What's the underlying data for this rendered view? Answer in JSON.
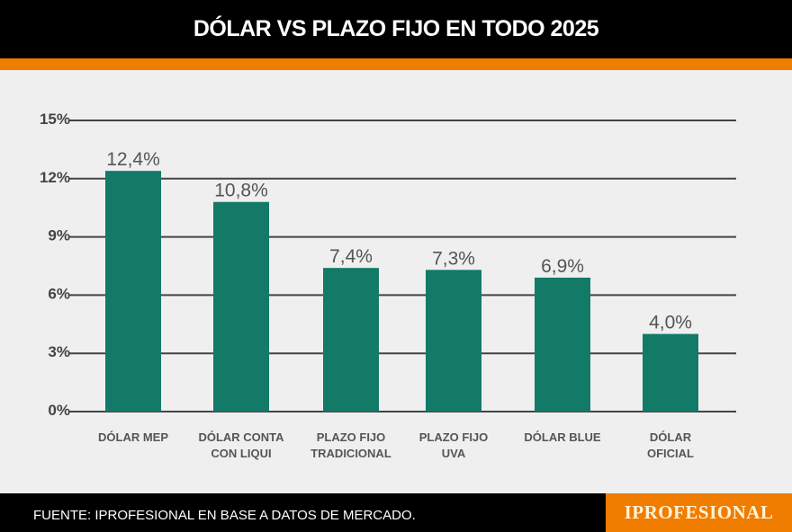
{
  "chart_data": {
    "type": "bar",
    "title": "DÓLAR VS PLAZO FIJO EN TODO 2025",
    "categories": [
      [
        "DÓLAR MEP"
      ],
      [
        "DÓLAR CONTA",
        "CON LIQUI"
      ],
      [
        "PLAZO FIJO",
        "TRADICIONAL"
      ],
      [
        "PLAZO FIJO",
        "UVA"
      ],
      [
        "DÓLAR BLUE"
      ],
      [
        "DÓLAR",
        "OFICIAL"
      ]
    ],
    "values": [
      12.4,
      10.8,
      7.4,
      7.3,
      6.9,
      4.0
    ],
    "data_labels": [
      "12,4%",
      "10,8%",
      "7,4%",
      "7,3%",
      "6,9%",
      "4,0%"
    ],
    "yticks": [
      0,
      3,
      6,
      9,
      12,
      15
    ],
    "ytick_labels": [
      "0%",
      "3%",
      "6%",
      "9%",
      "12%",
      "15%"
    ],
    "ylim": [
      0,
      15
    ],
    "grid": true,
    "xlabel": "",
    "ylabel": "",
    "bar_color": "#137a68"
  },
  "footer": {
    "source": "FUENTE: IPROFESIONAL EN BASE A DATOS DE MERCADO.",
    "brand": "IPROFESIONAL"
  },
  "colors": {
    "accent": "#f07c00",
    "header": "#000000",
    "background": "#efeff0"
  }
}
